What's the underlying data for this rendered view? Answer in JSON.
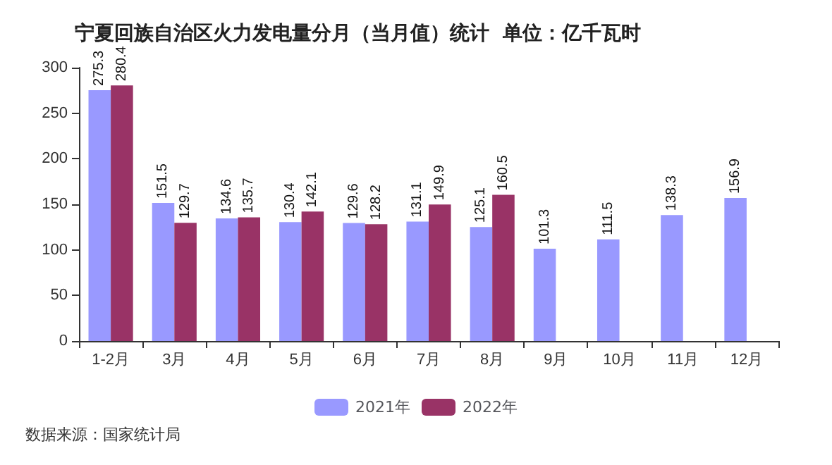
{
  "chart_data": {
    "type": "bar",
    "title": "宁夏回族自治区火力发电量分月（当月值）统计  单位：亿千瓦时",
    "categories": [
      "1-2月",
      "3月",
      "4月",
      "5月",
      "6月",
      "7月",
      "8月",
      "9月",
      "10月",
      "11月",
      "12月"
    ],
    "series": [
      {
        "name": "2021年",
        "color": "#9999ff",
        "values": [
          275.3,
          151.5,
          134.6,
          130.4,
          129.6,
          131.1,
          125.1,
          101.3,
          111.5,
          138.3,
          156.9
        ]
      },
      {
        "name": "2022年",
        "color": "#993366",
        "values": [
          280.4,
          129.7,
          135.7,
          142.1,
          128.2,
          149.9,
          160.5,
          null,
          null,
          null,
          null
        ]
      }
    ],
    "ylim": [
      0,
      300
    ],
    "yticks": [
      0,
      50,
      100,
      150,
      200,
      250,
      300
    ],
    "grid": false,
    "legend": "bottom",
    "data_labels": true,
    "annotations": [
      "数据来源：国家统计局"
    ]
  }
}
